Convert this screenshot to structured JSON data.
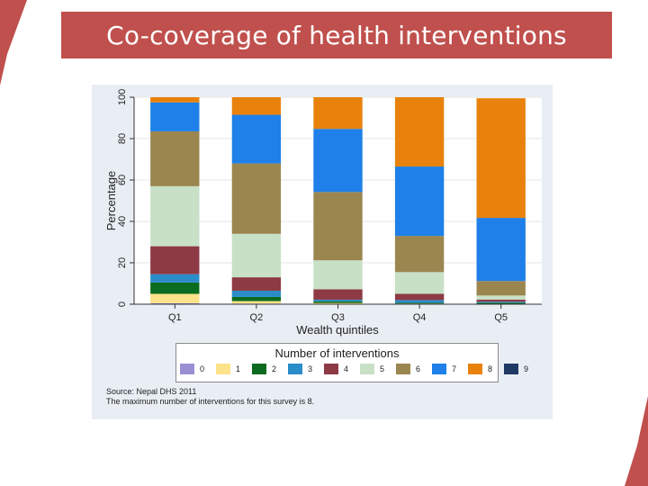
{
  "title": "Co-coverage of health interventions",
  "chart_data": {
    "type": "bar",
    "stacked": true,
    "categories": [
      "Q1",
      "Q2",
      "Q3",
      "Q4",
      "Q5"
    ],
    "xlabel": "Wealth quintiles",
    "ylabel": "Percentage",
    "ylim": [
      0,
      100
    ],
    "yticks": [
      0,
      20,
      40,
      60,
      80,
      100
    ],
    "grid": true,
    "series": [
      {
        "name": "0",
        "color": "#9b8fd4",
        "values": [
          0.5,
          0.3,
          0.2,
          0.1,
          0.1
        ]
      },
      {
        "name": "1",
        "color": "#fce38a",
        "values": [
          4.5,
          1.2,
          0.4,
          0.2,
          0.1
        ]
      },
      {
        "name": "2",
        "color": "#0b6b1f",
        "values": [
          5.5,
          2.0,
          0.8,
          0.4,
          0.5
        ]
      },
      {
        "name": "3",
        "color": "#2a8cc8",
        "values": [
          4.0,
          3.0,
          0.8,
          1.3,
          0.5
        ]
      },
      {
        "name": "4",
        "color": "#8e3a45",
        "values": [
          13.5,
          6.5,
          5.0,
          3.0,
          1.0
        ]
      },
      {
        "name": "5",
        "color": "#c7e0c6",
        "values": [
          29.0,
          21.0,
          14.0,
          10.5,
          2.0
        ]
      },
      {
        "name": "6",
        "color": "#9b8650",
        "values": [
          26.5,
          34.0,
          33.0,
          17.5,
          7.0
        ]
      },
      {
        "name": "7",
        "color": "#1e80e8",
        "values": [
          14.0,
          23.5,
          30.5,
          33.5,
          30.5
        ]
      },
      {
        "name": "8",
        "color": "#e8820c",
        "values": [
          2.5,
          8.5,
          15.3,
          33.5,
          57.8
        ]
      },
      {
        "name": "9",
        "color": "#1f3864",
        "values": [
          0,
          0,
          0,
          0,
          0
        ]
      }
    ],
    "legend": {
      "title": "Number of interventions",
      "position": "bottom"
    }
  },
  "notes": {
    "source": "Source: Nepal DHS 2011",
    "max_note": "The maximum number of interventions for this survey is 8."
  }
}
